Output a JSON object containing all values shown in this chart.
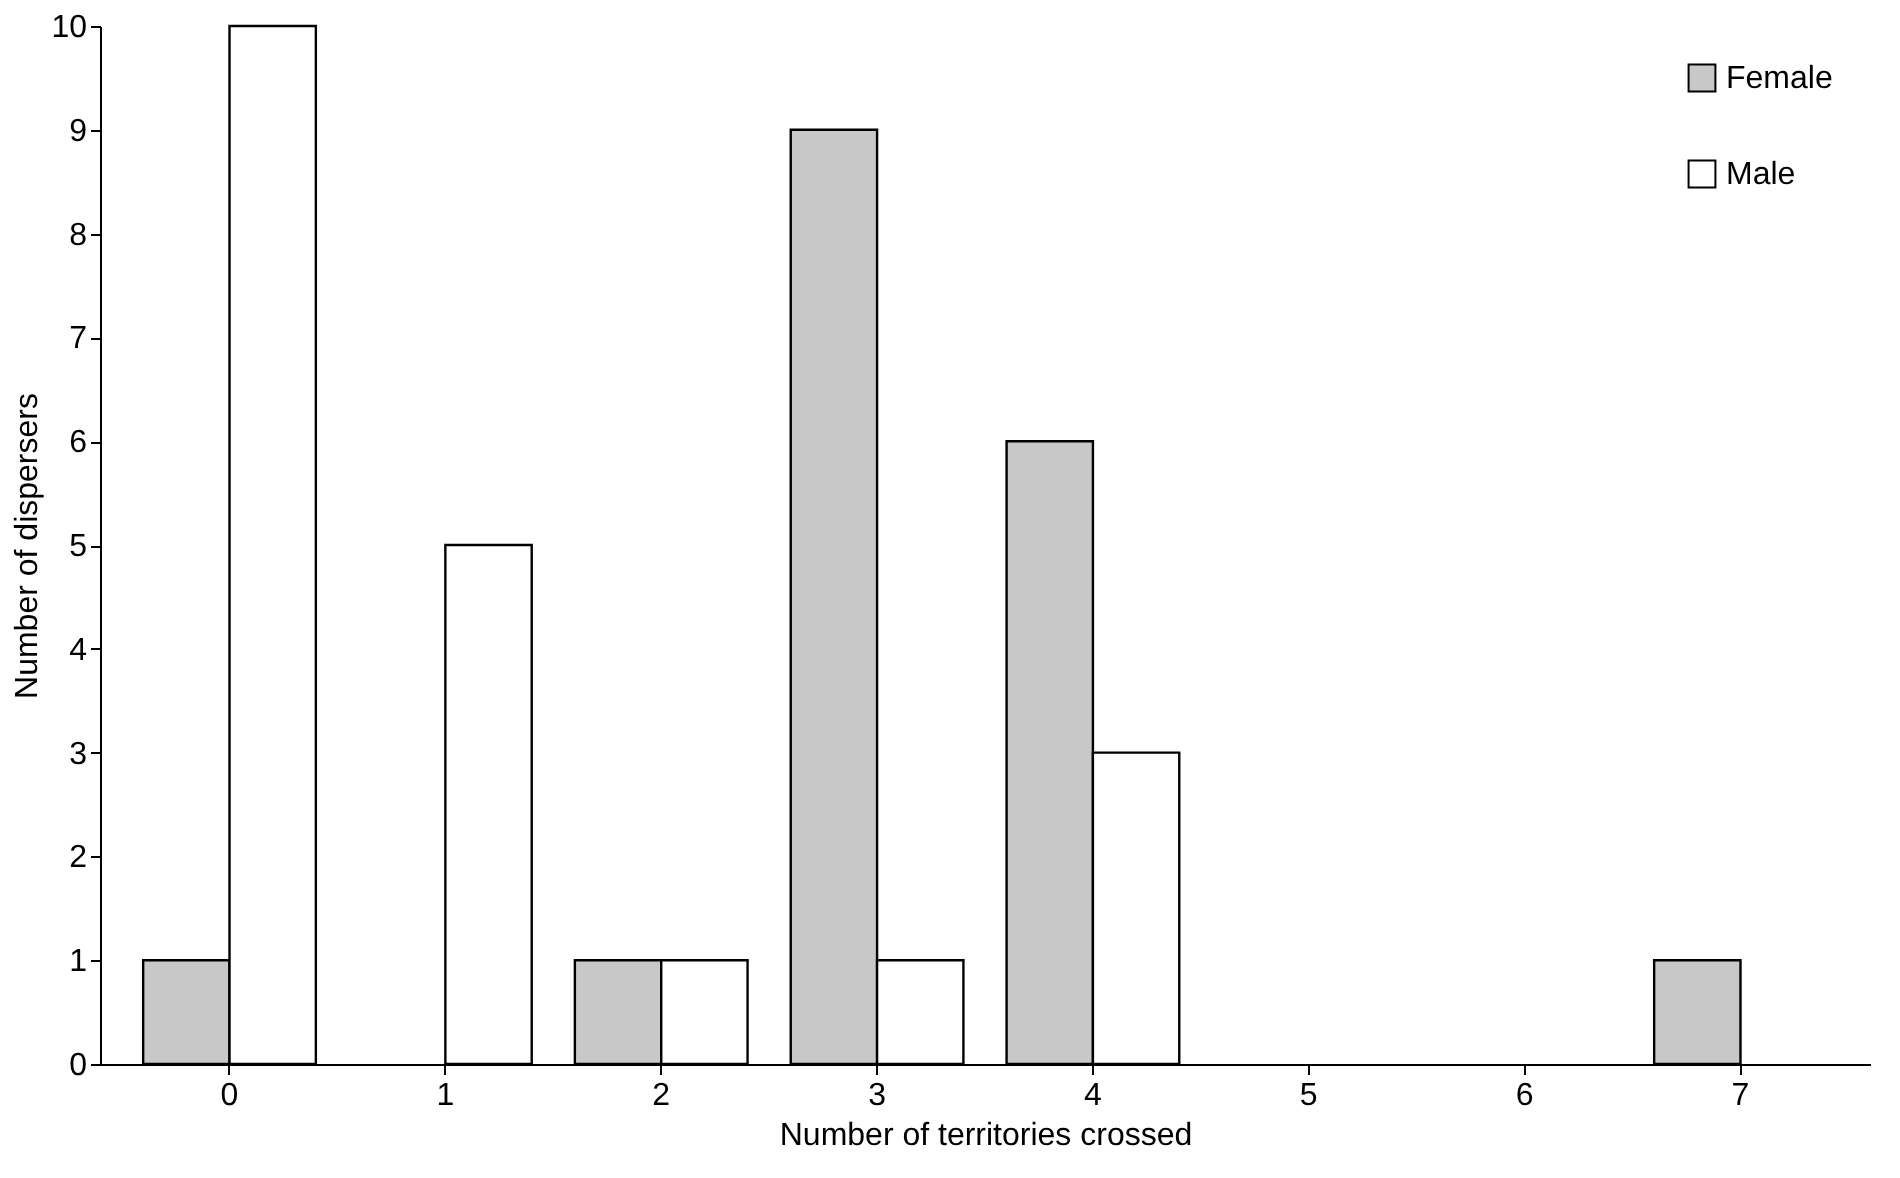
{
  "chart_data": {
    "type": "bar",
    "xlabel": "Number of territories crossed",
    "ylabel": "Number of dispersers",
    "categories": [
      "0",
      "1",
      "2",
      "3",
      "4",
      "5",
      "6",
      "7"
    ],
    "series": [
      {
        "name": "Female",
        "color": "#c8c8c8",
        "values": [
          1,
          0,
          1,
          9,
          6,
          0,
          0,
          1
        ]
      },
      {
        "name": "Male",
        "color": "#ffffff",
        "values": [
          10,
          5,
          1,
          1,
          3,
          0,
          0,
          0
        ]
      }
    ],
    "ylim": [
      0,
      10
    ],
    "yticks": [
      0,
      1,
      2,
      3,
      4,
      5,
      6,
      7,
      8,
      9,
      10
    ],
    "grid": false,
    "legend": "top right"
  }
}
